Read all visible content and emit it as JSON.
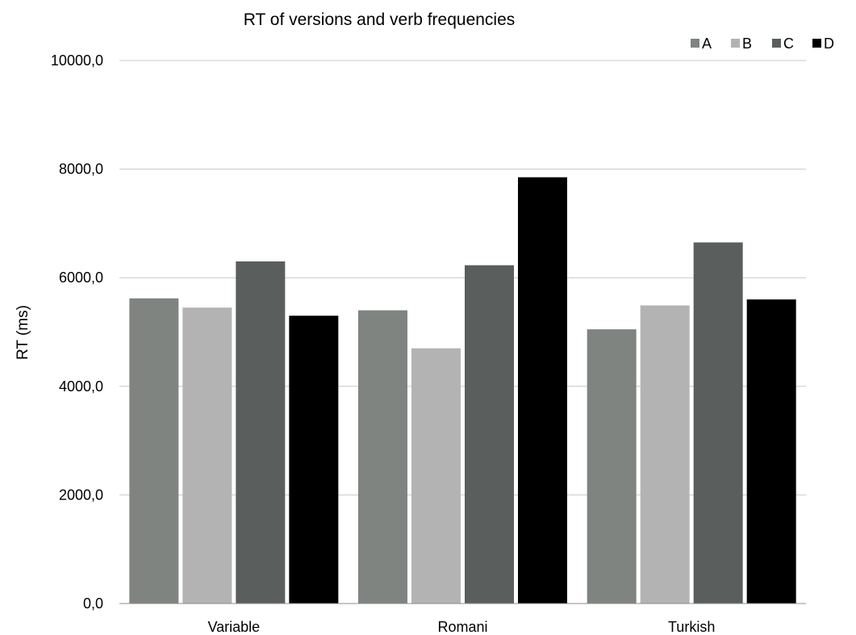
{
  "chart_data": {
    "type": "bar",
    "title": "RT of versions and verb frequencies",
    "xlabel": "",
    "ylabel": "RT (ms)",
    "ylim": [
      0,
      10000
    ],
    "y_ticks": [
      "0,0",
      "2000,0",
      "4000,0",
      "6000,0",
      "8000,0",
      "10000,0"
    ],
    "grid": true,
    "legend_position": "top-right",
    "categories": [
      "Variable",
      "Romani",
      "Turkish"
    ],
    "series": [
      {
        "name": "A",
        "color": "#7f8480",
        "values": [
          5620,
          5400,
          5050
        ]
      },
      {
        "name": "B",
        "color": "#b3b3b3",
        "values": [
          5450,
          4700,
          5490
        ]
      },
      {
        "name": "C",
        "color": "#5a5e5c",
        "values": [
          6300,
          6230,
          6650
        ]
      },
      {
        "name": "D",
        "color": "#000000",
        "values": [
          5300,
          7850,
          5600
        ]
      }
    ]
  }
}
